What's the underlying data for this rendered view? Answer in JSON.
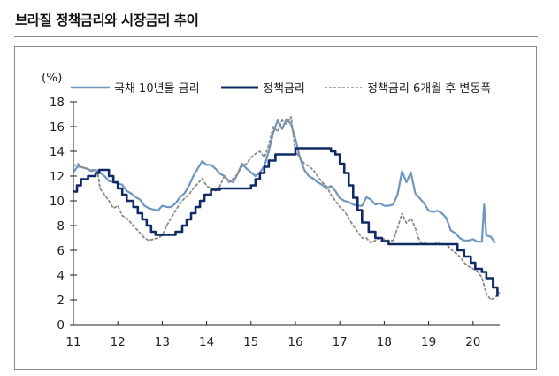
{
  "title": "브라질 정책금리와 시장금리 추이",
  "colors": {
    "bond": "#7096bf",
    "policy": "#0f2a66",
    "shifted": "#8c8c8c",
    "axis": "#222222",
    "frame": "#8a8a8a"
  },
  "chart_data": {
    "type": "line",
    "title": "브라질 정책금리와 시장금리 추이",
    "xlabel": "",
    "ylabel": "(%)",
    "ylim": [
      0,
      18
    ],
    "xlim": [
      11,
      20.6
    ],
    "grid": false,
    "legend_position": "top",
    "y_ticks": [
      0,
      2,
      4,
      6,
      8,
      10,
      12,
      14,
      16,
      18
    ],
    "x_ticks": [
      "11",
      "12",
      "13",
      "14",
      "15",
      "16",
      "17",
      "18",
      "19",
      "20"
    ],
    "series": [
      {
        "name": "국채 10년물 금리",
        "style": "solid-light",
        "x": [
          11.0,
          11.1,
          11.2,
          11.3,
          11.4,
          11.5,
          11.6,
          11.7,
          11.8,
          11.9,
          12.0,
          12.1,
          12.2,
          12.3,
          12.4,
          12.5,
          12.6,
          12.7,
          12.8,
          12.9,
          13.0,
          13.1,
          13.2,
          13.3,
          13.4,
          13.5,
          13.6,
          13.7,
          13.8,
          13.9,
          14.0,
          14.1,
          14.2,
          14.3,
          14.4,
          14.5,
          14.6,
          14.7,
          14.8,
          14.9,
          15.0,
          15.1,
          15.2,
          15.3,
          15.4,
          15.5,
          15.6,
          15.7,
          15.8,
          15.9,
          16.0,
          16.1,
          16.2,
          16.3,
          16.4,
          16.5,
          16.6,
          16.7,
          16.8,
          16.9,
          17.0,
          17.1,
          17.2,
          17.3,
          17.4,
          17.5,
          17.6,
          17.7,
          17.8,
          17.9,
          18.0,
          18.1,
          18.2,
          18.3,
          18.4,
          18.5,
          18.6,
          18.7,
          18.8,
          18.9,
          19.0,
          19.1,
          19.2,
          19.3,
          19.4,
          19.5,
          19.6,
          19.7,
          19.8,
          19.9,
          20.0,
          20.1,
          20.2,
          20.25,
          20.3,
          20.4,
          20.5
        ],
        "values": [
          12.3,
          12.8,
          12.7,
          12.6,
          12.4,
          12.5,
          12.3,
          12.0,
          11.6,
          11.5,
          11.4,
          11.3,
          10.8,
          10.6,
          10.3,
          10.1,
          9.6,
          9.4,
          9.3,
          9.2,
          9.6,
          9.5,
          9.5,
          9.8,
          10.3,
          10.6,
          11.2,
          12.0,
          12.6,
          13.2,
          12.9,
          12.9,
          12.6,
          12.2,
          12.0,
          11.6,
          11.5,
          12.2,
          13.0,
          12.6,
          12.3,
          12.0,
          12.3,
          12.8,
          14.0,
          15.5,
          16.5,
          15.8,
          16.6,
          16.2,
          15.0,
          13.5,
          12.5,
          12.0,
          11.8,
          11.5,
          11.3,
          11.0,
          11.2,
          10.8,
          10.2,
          10.0,
          9.9,
          9.7,
          9.6,
          9.6,
          10.3,
          10.1,
          9.7,
          9.8,
          9.6,
          9.6,
          9.7,
          10.5,
          12.4,
          11.5,
          12.3,
          10.6,
          10.2,
          9.8,
          9.2,
          9.1,
          9.2,
          9.0,
          8.6,
          7.6,
          7.4,
          7.0,
          6.8,
          6.8,
          6.9,
          6.7,
          6.7,
          9.7,
          7.2,
          7.1,
          6.6
        ]
      },
      {
        "name": "정책금리",
        "style": "step-dark",
        "x": [
          11.0,
          11.08,
          11.17,
          11.33,
          11.5,
          11.58,
          11.67,
          11.8,
          11.9,
          12.0,
          12.1,
          12.2,
          12.35,
          12.45,
          12.55,
          12.65,
          12.75,
          12.85,
          13.0,
          13.2,
          13.3,
          13.45,
          13.55,
          13.65,
          13.75,
          13.85,
          13.95,
          14.1,
          14.3,
          14.9,
          15.0,
          15.1,
          15.2,
          15.3,
          15.4,
          15.55,
          16.0,
          16.7,
          16.8,
          16.9,
          17.0,
          17.1,
          17.2,
          17.3,
          17.4,
          17.5,
          17.65,
          17.8,
          17.95,
          18.1,
          18.3,
          18.6,
          19.0,
          19.5,
          19.65,
          19.8,
          19.95,
          20.05,
          20.2,
          20.3,
          20.45,
          20.55
        ],
        "values": [
          10.75,
          11.25,
          11.75,
          12.0,
          12.25,
          12.5,
          12.5,
          12.0,
          11.5,
          11.0,
          10.5,
          10.0,
          9.5,
          9.0,
          8.5,
          8.0,
          7.5,
          7.25,
          7.25,
          7.25,
          7.5,
          8.0,
          8.5,
          9.0,
          9.5,
          10.0,
          10.5,
          10.9,
          11.0,
          11.0,
          11.25,
          11.75,
          12.25,
          12.75,
          13.25,
          13.75,
          14.25,
          14.25,
          14.0,
          13.75,
          13.0,
          12.25,
          11.25,
          10.25,
          9.25,
          8.25,
          7.5,
          7.0,
          6.75,
          6.5,
          6.5,
          6.5,
          6.5,
          6.5,
          6.0,
          5.5,
          5.0,
          4.5,
          4.25,
          3.75,
          3.0,
          2.25
        ]
      },
      {
        "name": "정책금리 6개월 후 변동폭",
        "style": "dashed-grey",
        "x": [
          11.0,
          11.1,
          11.2,
          11.3,
          11.4,
          11.5,
          11.55,
          11.6,
          11.7,
          11.8,
          11.9,
          12.0,
          12.1,
          12.2,
          12.3,
          12.4,
          12.5,
          12.6,
          12.7,
          12.8,
          12.9,
          13.0,
          13.1,
          13.2,
          13.3,
          13.4,
          13.5,
          13.6,
          13.7,
          13.8,
          13.9,
          14.0,
          14.1,
          14.2,
          14.3,
          14.4,
          14.5,
          14.6,
          14.7,
          14.8,
          14.9,
          15.0,
          15.1,
          15.2,
          15.3,
          15.4,
          15.5,
          15.6,
          15.7,
          15.8,
          15.9,
          16.0,
          16.1,
          16.2,
          16.3,
          16.4,
          16.5,
          16.6,
          16.7,
          16.8,
          16.9,
          17.0,
          17.1,
          17.2,
          17.3,
          17.4,
          17.5,
          17.6,
          17.7,
          17.8,
          17.9,
          18.0,
          18.1,
          18.2,
          18.3,
          18.4,
          18.5,
          18.6,
          18.7,
          18.8,
          18.9,
          19.0,
          19.1,
          19.2,
          19.3,
          19.4,
          19.5,
          19.6,
          19.7,
          19.8,
          19.9,
          20.0,
          20.1,
          20.2,
          20.3,
          20.4,
          20.5,
          20.6
        ],
        "values": [
          12.8,
          13.0,
          12.7,
          12.6,
          12.5,
          12.5,
          12.2,
          11.0,
          10.5,
          10.0,
          9.4,
          9.6,
          8.8,
          8.6,
          8.2,
          7.8,
          7.4,
          7.0,
          6.8,
          6.9,
          7.0,
          7.2,
          8.0,
          8.6,
          9.2,
          9.8,
          10.2,
          10.5,
          11.0,
          11.4,
          11.8,
          11.2,
          11.0,
          10.8,
          11.2,
          12.0,
          11.5,
          11.8,
          12.2,
          12.8,
          13.0,
          13.5,
          13.8,
          14.0,
          13.5,
          14.5,
          16.0,
          15.6,
          16.5,
          16.2,
          16.8,
          14.0,
          13.5,
          13.0,
          12.8,
          12.5,
          12.0,
          11.5,
          11.2,
          10.5,
          10.0,
          9.5,
          9.2,
          8.6,
          8.0,
          7.5,
          7.0,
          7.0,
          6.6,
          6.8,
          7.0,
          6.9,
          6.8,
          6.8,
          7.8,
          9.0,
          8.2,
          8.6,
          7.8,
          6.7,
          6.6,
          6.5,
          6.5,
          6.6,
          6.5,
          6.5,
          6.1,
          5.8,
          5.5,
          5.0,
          4.7,
          4.5,
          4.3,
          3.8,
          2.5,
          2.0,
          2.2,
          2.6
        ]
      }
    ]
  }
}
